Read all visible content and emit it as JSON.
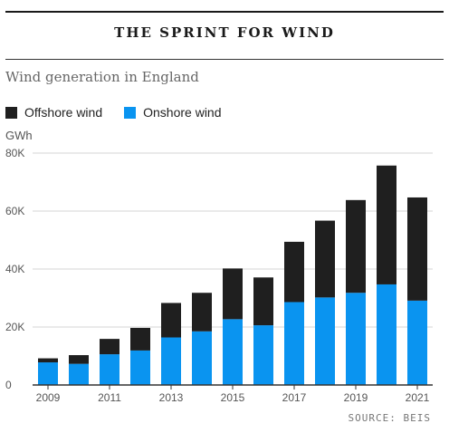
{
  "headline": "THE SPRINT FOR WIND",
  "subtitle": "Wind generation in England",
  "unit_label": "GWh",
  "source": "SOURCE: BEIS",
  "colors": {
    "offshore": "#1f1f1f",
    "onshore": "#0a94f0",
    "grid": "#d6d6d6",
    "axis": "#333333"
  },
  "chart_data": {
    "type": "bar",
    "stacked": true,
    "x": [
      2009,
      2010,
      2011,
      2012,
      2013,
      2014,
      2015,
      2016,
      2017,
      2018,
      2019,
      2020,
      2021
    ],
    "x_tick_labels": [
      "2009",
      "2011",
      "2013",
      "2015",
      "2017",
      "2019",
      "2021"
    ],
    "y_ticks": [
      0,
      20000,
      40000,
      60000,
      80000
    ],
    "y_tick_labels": [
      "0",
      "20K",
      "40K",
      "60K",
      "80K"
    ],
    "ylim": [
      0,
      80000
    ],
    "grid": true,
    "legend_position": "top-left",
    "series": [
      {
        "name": "Onshore wind",
        "values": [
          7800,
          7300,
          10600,
          11900,
          16400,
          18500,
          22700,
          20600,
          28600,
          30200,
          31800,
          34700,
          29100
        ]
      },
      {
        "name": "Offshore wind",
        "values": [
          1400,
          3000,
          5300,
          7800,
          11900,
          13300,
          17500,
          16500,
          20800,
          26500,
          32000,
          41000,
          35600
        ]
      }
    ]
  }
}
